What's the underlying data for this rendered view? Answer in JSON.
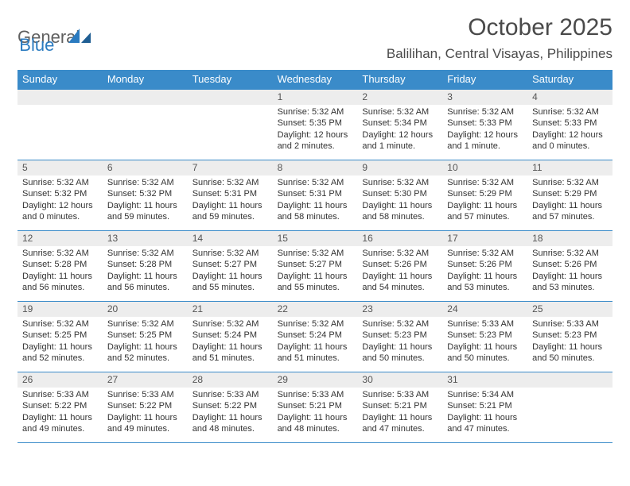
{
  "logo": {
    "part1": "General",
    "part2": "Blue"
  },
  "title": {
    "month": "October 2025",
    "location": "Balilihan, Central Visayas, Philippines"
  },
  "colors": {
    "header_bg": "#3a8bc9",
    "header_text": "#ffffff",
    "daynum_bg": "#ededed",
    "border": "#3a8bc9",
    "logo_gray": "#606060",
    "logo_blue": "#2b7bc0"
  },
  "day_names": [
    "Sunday",
    "Monday",
    "Tuesday",
    "Wednesday",
    "Thursday",
    "Friday",
    "Saturday"
  ],
  "weeks": [
    [
      {
        "n": "",
        "sunrise": "",
        "sunset": "",
        "daylight": ""
      },
      {
        "n": "",
        "sunrise": "",
        "sunset": "",
        "daylight": ""
      },
      {
        "n": "",
        "sunrise": "",
        "sunset": "",
        "daylight": ""
      },
      {
        "n": "1",
        "sunrise": "Sunrise: 5:32 AM",
        "sunset": "Sunset: 5:35 PM",
        "daylight": "Daylight: 12 hours and 2 minutes."
      },
      {
        "n": "2",
        "sunrise": "Sunrise: 5:32 AM",
        "sunset": "Sunset: 5:34 PM",
        "daylight": "Daylight: 12 hours and 1 minute."
      },
      {
        "n": "3",
        "sunrise": "Sunrise: 5:32 AM",
        "sunset": "Sunset: 5:33 PM",
        "daylight": "Daylight: 12 hours and 1 minute."
      },
      {
        "n": "4",
        "sunrise": "Sunrise: 5:32 AM",
        "sunset": "Sunset: 5:33 PM",
        "daylight": "Daylight: 12 hours and 0 minutes."
      }
    ],
    [
      {
        "n": "5",
        "sunrise": "Sunrise: 5:32 AM",
        "sunset": "Sunset: 5:32 PM",
        "daylight": "Daylight: 12 hours and 0 minutes."
      },
      {
        "n": "6",
        "sunrise": "Sunrise: 5:32 AM",
        "sunset": "Sunset: 5:32 PM",
        "daylight": "Daylight: 11 hours and 59 minutes."
      },
      {
        "n": "7",
        "sunrise": "Sunrise: 5:32 AM",
        "sunset": "Sunset: 5:31 PM",
        "daylight": "Daylight: 11 hours and 59 minutes."
      },
      {
        "n": "8",
        "sunrise": "Sunrise: 5:32 AM",
        "sunset": "Sunset: 5:31 PM",
        "daylight": "Daylight: 11 hours and 58 minutes."
      },
      {
        "n": "9",
        "sunrise": "Sunrise: 5:32 AM",
        "sunset": "Sunset: 5:30 PM",
        "daylight": "Daylight: 11 hours and 58 minutes."
      },
      {
        "n": "10",
        "sunrise": "Sunrise: 5:32 AM",
        "sunset": "Sunset: 5:29 PM",
        "daylight": "Daylight: 11 hours and 57 minutes."
      },
      {
        "n": "11",
        "sunrise": "Sunrise: 5:32 AM",
        "sunset": "Sunset: 5:29 PM",
        "daylight": "Daylight: 11 hours and 57 minutes."
      }
    ],
    [
      {
        "n": "12",
        "sunrise": "Sunrise: 5:32 AM",
        "sunset": "Sunset: 5:28 PM",
        "daylight": "Daylight: 11 hours and 56 minutes."
      },
      {
        "n": "13",
        "sunrise": "Sunrise: 5:32 AM",
        "sunset": "Sunset: 5:28 PM",
        "daylight": "Daylight: 11 hours and 56 minutes."
      },
      {
        "n": "14",
        "sunrise": "Sunrise: 5:32 AM",
        "sunset": "Sunset: 5:27 PM",
        "daylight": "Daylight: 11 hours and 55 minutes."
      },
      {
        "n": "15",
        "sunrise": "Sunrise: 5:32 AM",
        "sunset": "Sunset: 5:27 PM",
        "daylight": "Daylight: 11 hours and 55 minutes."
      },
      {
        "n": "16",
        "sunrise": "Sunrise: 5:32 AM",
        "sunset": "Sunset: 5:26 PM",
        "daylight": "Daylight: 11 hours and 54 minutes."
      },
      {
        "n": "17",
        "sunrise": "Sunrise: 5:32 AM",
        "sunset": "Sunset: 5:26 PM",
        "daylight": "Daylight: 11 hours and 53 minutes."
      },
      {
        "n": "18",
        "sunrise": "Sunrise: 5:32 AM",
        "sunset": "Sunset: 5:26 PM",
        "daylight": "Daylight: 11 hours and 53 minutes."
      }
    ],
    [
      {
        "n": "19",
        "sunrise": "Sunrise: 5:32 AM",
        "sunset": "Sunset: 5:25 PM",
        "daylight": "Daylight: 11 hours and 52 minutes."
      },
      {
        "n": "20",
        "sunrise": "Sunrise: 5:32 AM",
        "sunset": "Sunset: 5:25 PM",
        "daylight": "Daylight: 11 hours and 52 minutes."
      },
      {
        "n": "21",
        "sunrise": "Sunrise: 5:32 AM",
        "sunset": "Sunset: 5:24 PM",
        "daylight": "Daylight: 11 hours and 51 minutes."
      },
      {
        "n": "22",
        "sunrise": "Sunrise: 5:32 AM",
        "sunset": "Sunset: 5:24 PM",
        "daylight": "Daylight: 11 hours and 51 minutes."
      },
      {
        "n": "23",
        "sunrise": "Sunrise: 5:32 AM",
        "sunset": "Sunset: 5:23 PM",
        "daylight": "Daylight: 11 hours and 50 minutes."
      },
      {
        "n": "24",
        "sunrise": "Sunrise: 5:33 AM",
        "sunset": "Sunset: 5:23 PM",
        "daylight": "Daylight: 11 hours and 50 minutes."
      },
      {
        "n": "25",
        "sunrise": "Sunrise: 5:33 AM",
        "sunset": "Sunset: 5:23 PM",
        "daylight": "Daylight: 11 hours and 50 minutes."
      }
    ],
    [
      {
        "n": "26",
        "sunrise": "Sunrise: 5:33 AM",
        "sunset": "Sunset: 5:22 PM",
        "daylight": "Daylight: 11 hours and 49 minutes."
      },
      {
        "n": "27",
        "sunrise": "Sunrise: 5:33 AM",
        "sunset": "Sunset: 5:22 PM",
        "daylight": "Daylight: 11 hours and 49 minutes."
      },
      {
        "n": "28",
        "sunrise": "Sunrise: 5:33 AM",
        "sunset": "Sunset: 5:22 PM",
        "daylight": "Daylight: 11 hours and 48 minutes."
      },
      {
        "n": "29",
        "sunrise": "Sunrise: 5:33 AM",
        "sunset": "Sunset: 5:21 PM",
        "daylight": "Daylight: 11 hours and 48 minutes."
      },
      {
        "n": "30",
        "sunrise": "Sunrise: 5:33 AM",
        "sunset": "Sunset: 5:21 PM",
        "daylight": "Daylight: 11 hours and 47 minutes."
      },
      {
        "n": "31",
        "sunrise": "Sunrise: 5:34 AM",
        "sunset": "Sunset: 5:21 PM",
        "daylight": "Daylight: 11 hours and 47 minutes."
      },
      {
        "n": "",
        "sunrise": "",
        "sunset": "",
        "daylight": ""
      }
    ]
  ]
}
